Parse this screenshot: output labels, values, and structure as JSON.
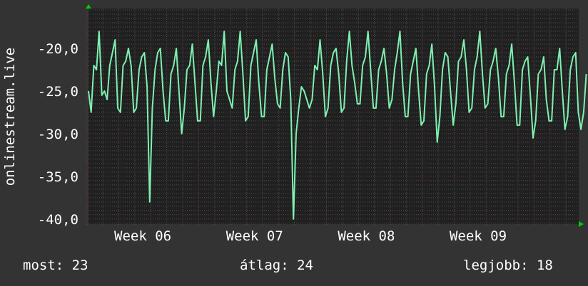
{
  "chart_data": {
    "type": "line",
    "ylabel": "onlinestream.live",
    "ylim": [
      -40.6,
      -15.33
    ],
    "yticks": [
      -20,
      -25,
      -30,
      -35,
      -40
    ],
    "ytick_labels": [
      "-20,0",
      "-25,0",
      "-30,0",
      "-35,0",
      "-40,0"
    ],
    "x_unit": "days",
    "xlim": [
      0,
      30.7
    ],
    "x_step": 0.1667,
    "week_boundaries": [
      -0.1,
      6.9,
      13.9,
      20.9,
      27.9
    ],
    "xtick_labels": [
      "Week 06",
      "Week 07",
      "Week 08",
      "Week 09"
    ],
    "grid": true,
    "series": [
      {
        "name": "onlinestream.live",
        "color": "#7ef0b0",
        "values": [
          -25,
          -27.5,
          -22,
          -22.5,
          -18,
          -25.5,
          -25,
          -26,
          -22,
          -20.5,
          -19,
          -27,
          -27.5,
          -22,
          -21.5,
          -20,
          -22,
          -27.5,
          -27,
          -22.5,
          -21,
          -20.5,
          -24.5,
          -38,
          -27,
          -22.5,
          -20.5,
          -20,
          -25,
          -28.5,
          -28.5,
          -23,
          -22,
          -20,
          -25,
          -30,
          -27,
          -22.5,
          -22,
          -19.5,
          -24,
          -28.5,
          -28.5,
          -22,
          -21,
          -19,
          -24,
          -28,
          -25,
          -21.5,
          -22,
          -18,
          -25,
          -26,
          -27,
          -22.5,
          -21.5,
          -18,
          -23,
          -28.5,
          -28,
          -22,
          -20.5,
          -19,
          -24,
          -28,
          -28,
          -22.5,
          -21,
          -19.5,
          -23.5,
          -26.5,
          -27,
          -22.5,
          -20.5,
          -21,
          -26,
          -40,
          -30,
          -27,
          -24.5,
          -25,
          -26,
          -27,
          -26,
          -22,
          -22.5,
          -19,
          -23,
          -28,
          -27,
          -22,
          -20.5,
          -20,
          -23,
          -27.5,
          -27,
          -21.5,
          -18,
          -22,
          -24,
          -26.5,
          -26.5,
          -22,
          -21,
          -18,
          -22.5,
          -27,
          -27,
          -22.5,
          -21.5,
          -20,
          -23,
          -27,
          -26,
          -22.5,
          -20.5,
          -18,
          -24,
          -28,
          -28,
          -23,
          -21.5,
          -20,
          -25,
          -29,
          -28.5,
          -23,
          -22,
          -19.5,
          -24.5,
          -31,
          -28,
          -22.5,
          -20.5,
          -21,
          -25,
          -29,
          -26.5,
          -21.5,
          -21,
          -19,
          -22.5,
          -27.5,
          -27,
          -22.5,
          -21,
          -18,
          -23,
          -27,
          -26.5,
          -22.5,
          -21.5,
          -20,
          -23.5,
          -28,
          -28,
          -23,
          -22,
          -19.5,
          -24,
          -29,
          -29,
          -22.5,
          -21.5,
          -21,
          -25.5,
          -30.5,
          -28.5,
          -23,
          -22.5,
          -21,
          -26,
          -28.5,
          -28.5,
          -22.5,
          -22.5,
          -20,
          -25,
          -29.5,
          -28,
          -22.5,
          -21,
          -20.5,
          -27.5,
          -29.5,
          -27.5,
          -23
        ]
      }
    ]
  },
  "legend": {
    "current_label": "most: 23",
    "average_label": "átlag: 24",
    "best_label": "legjobb: 18"
  }
}
